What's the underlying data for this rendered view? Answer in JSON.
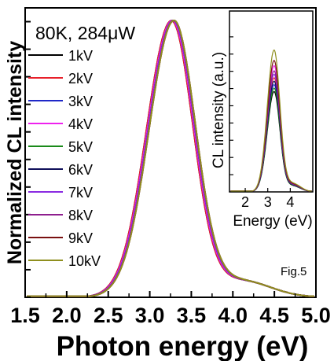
{
  "chart_data": [
    {
      "type": "line",
      "xlabel": "Photon energy (eV)",
      "ylabel": "Normalized CL intensity",
      "xlim": [
        1.5,
        5.0
      ],
      "ylim": [
        0,
        1.05
      ],
      "xticks": [
        "1.5",
        "2.0",
        "2.5",
        "3.0",
        "3.5",
        "4.0",
        "4.5",
        "5.0"
      ],
      "annotation": "80K, 284μW",
      "figure_label": "Fig.5",
      "grid": false,
      "legend_position": "left",
      "peak_x": [
        3.26,
        3.26,
        3.27,
        3.27,
        3.28,
        3.28,
        3.28,
        3.29,
        3.29,
        3.29
      ],
      "series": [
        {
          "name": "1kV",
          "color": "#000000",
          "peak": 1.0
        },
        {
          "name": "2kV",
          "color": "#e8202a",
          "peak": 1.0
        },
        {
          "name": "3kV",
          "color": "#1f28c8",
          "peak": 1.0
        },
        {
          "name": "4kV",
          "color": "#ee22ee",
          "peak": 1.0
        },
        {
          "name": "5kV",
          "color": "#1a8a1a",
          "peak": 1.0
        },
        {
          "name": "6kV",
          "color": "#10105a",
          "peak": 1.0
        },
        {
          "name": "7kV",
          "color": "#8a2be2",
          "peak": 1.0
        },
        {
          "name": "8kV",
          "color": "#8e1e8e",
          "peak": 1.0
        },
        {
          "name": "9kV",
          "color": "#7a1010",
          "peak": 1.0
        },
        {
          "name": "10kV",
          "color": "#8f8f1e",
          "peak": 1.0
        }
      ]
    },
    {
      "type": "line",
      "xlabel": "Energy (eV)",
      "ylabel": "CL intensity (a.u.)",
      "xlim": [
        1.3,
        5.0
      ],
      "xticks": [
        "2",
        "3",
        "4"
      ],
      "ylim": [
        0,
        1.05
      ],
      "series": [
        {
          "name": "1kV",
          "color": "#000000",
          "peak": 0.58
        },
        {
          "name": "2kV",
          "color": "#e8202a",
          "peak": 0.66
        },
        {
          "name": "3kV",
          "color": "#1f28c8",
          "peak": 0.62
        },
        {
          "name": "4kV",
          "color": "#ee22ee",
          "peak": 0.73
        },
        {
          "name": "5kV",
          "color": "#1a8a1a",
          "peak": 0.6
        },
        {
          "name": "6kV",
          "color": "#10105a",
          "peak": 0.64
        },
        {
          "name": "7kV",
          "color": "#8a2be2",
          "peak": 0.68
        },
        {
          "name": "8kV",
          "color": "#8e1e8e",
          "peak": 0.7
        },
        {
          "name": "9kV",
          "color": "#7a1010",
          "peak": 0.76
        },
        {
          "name": "10kV",
          "color": "#8f8f1e",
          "peak": 0.82
        }
      ]
    }
  ]
}
